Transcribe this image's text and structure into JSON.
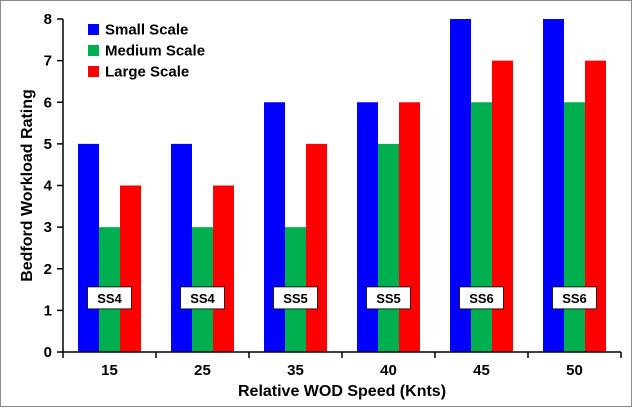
{
  "chart_data": {
    "type": "bar",
    "title": "",
    "xlabel": "Relative WOD Speed (Knts)",
    "ylabel": "Bedford Workload Rating",
    "ylim": [
      0,
      8
    ],
    "yticks": [
      0,
      1,
      2,
      3,
      4,
      5,
      6,
      7,
      8
    ],
    "categories": [
      "15",
      "25",
      "35",
      "40",
      "45",
      "50"
    ],
    "series": [
      {
        "name": "Small Scale",
        "color": "#0000ff",
        "values": [
          5,
          5,
          6,
          6,
          8,
          8
        ]
      },
      {
        "name": "Medium Scale",
        "color": "#00b050",
        "values": [
          3,
          3,
          3,
          5,
          6,
          6
        ]
      },
      {
        "name": "Large Scale",
        "color": "#ff0000",
        "values": [
          4,
          4,
          5,
          6,
          7,
          7
        ]
      }
    ],
    "annotations": [
      "SS4",
      "SS4",
      "SS5",
      "SS5",
      "SS6",
      "SS6"
    ],
    "annotation_y": 1.3,
    "legend_position": "top-left",
    "grid": false
  }
}
